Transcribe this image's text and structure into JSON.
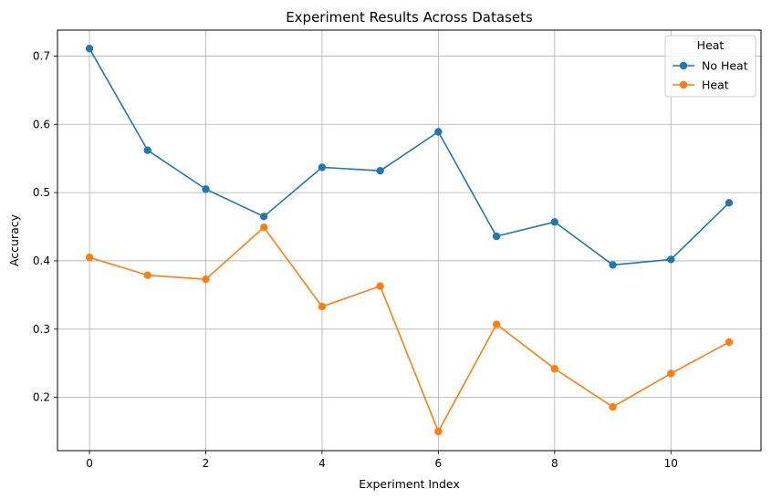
{
  "chart_data": {
    "type": "line",
    "title": "Experiment Results Across Datasets",
    "xlabel": "Experiment Index",
    "ylabel": "Accuracy",
    "x": [
      0,
      1,
      2,
      3,
      4,
      5,
      6,
      7,
      8,
      9,
      10,
      11
    ],
    "xlim": [
      -0.55,
      11.55
    ],
    "ylim": [
      0.122,
      0.738
    ],
    "xticks": [
      0,
      2,
      4,
      6,
      8,
      10
    ],
    "xtick_labels": [
      "0",
      "2",
      "4",
      "6",
      "8",
      "10"
    ],
    "yticks": [
      0.2,
      0.3,
      0.4,
      0.5,
      0.6,
      0.7
    ],
    "ytick_labels": [
      "0.2",
      "0.3",
      "0.4",
      "0.5",
      "0.6",
      "0.7"
    ],
    "grid": true,
    "legend": {
      "title": "Heat",
      "placement": "top-right"
    },
    "series": [
      {
        "name": "No Heat",
        "color": "#1f77b4",
        "values": [
          0.711,
          0.562,
          0.505,
          0.465,
          0.537,
          0.532,
          0.589,
          0.436,
          0.457,
          0.394,
          0.402,
          0.485
        ]
      },
      {
        "name": "Heat",
        "color": "#ff7f0e",
        "values": [
          0.405,
          0.379,
          0.373,
          0.449,
          0.333,
          0.363,
          0.15,
          0.307,
          0.242,
          0.186,
          0.235,
          0.281
        ]
      }
    ]
  }
}
